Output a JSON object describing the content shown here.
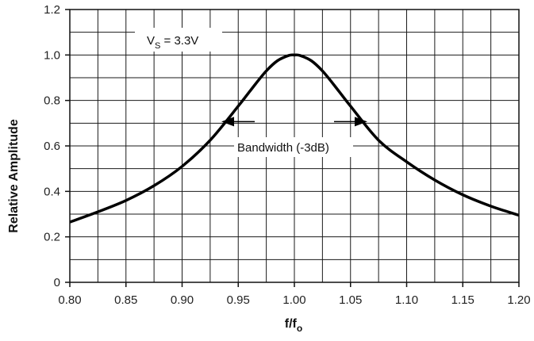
{
  "chart_data": {
    "type": "line",
    "xlabel": "f/f",
    "xlabel_sub": "o",
    "ylabel": "Relative Amplitude",
    "xlim": [
      0.8,
      1.2
    ],
    "ylim": [
      0,
      1.2
    ],
    "x_ticks": [
      "0.80",
      "0.85",
      "0.90",
      "0.95",
      "1.00",
      "1.05",
      "1.10",
      "1.15",
      "1.20"
    ],
    "y_ticks": [
      "0",
      "0.2",
      "0.4",
      "0.6",
      "0.8",
      "1.0",
      "1.2"
    ],
    "grid": true,
    "series": [
      {
        "x": [
          0.8,
          0.825,
          0.85,
          0.875,
          0.9,
          0.925,
          0.95,
          0.965,
          0.975,
          0.985,
          0.995,
          1.0,
          1.005,
          1.015,
          1.025,
          1.035,
          1.05,
          1.075,
          1.1,
          1.125,
          1.15,
          1.175,
          1.2
        ],
        "y": [
          0.265,
          0.31,
          0.36,
          0.425,
          0.51,
          0.625,
          0.775,
          0.87,
          0.93,
          0.975,
          0.998,
          1.0,
          0.998,
          0.975,
          0.93,
          0.87,
          0.775,
          0.625,
          0.53,
          0.45,
          0.385,
          0.335,
          0.295
        ]
      }
    ],
    "annotations": {
      "supply_label": "V",
      "supply_sub": "S",
      "supply_value": " = 3.3V",
      "bandwidth_label": "Bandwidth (-3dB)",
      "bandwidth_y": 0.707,
      "bandwidth_x": [
        0.935,
        1.065
      ]
    }
  }
}
